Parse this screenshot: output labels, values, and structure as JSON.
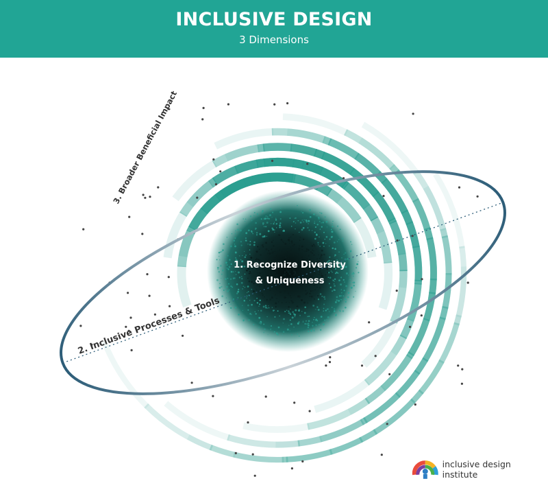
{
  "header": {
    "title": "INCLUSIVE DESIGN",
    "subtitle": "3 Dimensions"
  },
  "diagram": {
    "center_label_line1": "1. Recognize Diversity",
    "center_label_line2": "& Uniqueness",
    "processes_label": "2. Inclusive Processes & Tools",
    "impact_label": "3. Broader Beneficial Impact"
  },
  "brand": {
    "name": "inclusive design institute"
  },
  "colors": {
    "header": "#21a595",
    "teal": "#2a9d8f",
    "ellipse": "#2d5d78",
    "core": "#0a1a1a"
  }
}
